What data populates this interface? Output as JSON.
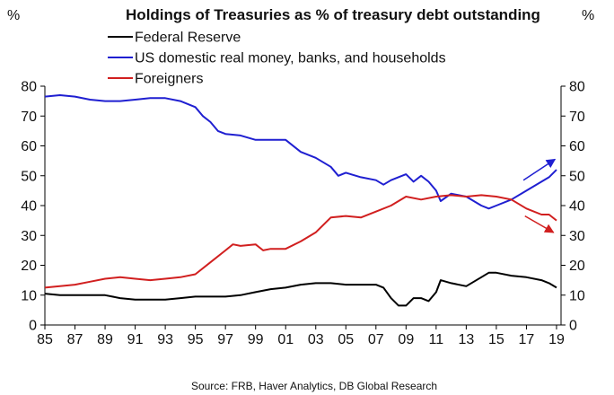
{
  "chart_data": {
    "type": "line",
    "title": "Holdings of Treasuries as % of treasury debt outstanding",
    "left_unit": "%",
    "right_unit": "%",
    "ylim": [
      0,
      80
    ],
    "y_ticks": [
      0,
      10,
      20,
      30,
      40,
      50,
      60,
      70,
      80
    ],
    "xlim": [
      1985,
      2019.3
    ],
    "x_ticks": [
      {
        "value": 1985,
        "label": "85"
      },
      {
        "value": 1987,
        "label": "87"
      },
      {
        "value": 1989,
        "label": "89"
      },
      {
        "value": 1991,
        "label": "91"
      },
      {
        "value": 1993,
        "label": "93"
      },
      {
        "value": 1995,
        "label": "95"
      },
      {
        "value": 1997,
        "label": "97"
      },
      {
        "value": 1999,
        "label": "99"
      },
      {
        "value": 2001,
        "label": "01"
      },
      {
        "value": 2003,
        "label": "03"
      },
      {
        "value": 2005,
        "label": "05"
      },
      {
        "value": 2007,
        "label": "07"
      },
      {
        "value": 2009,
        "label": "09"
      },
      {
        "value": 2011,
        "label": "11"
      },
      {
        "value": 2013,
        "label": "13"
      },
      {
        "value": 2015,
        "label": "15"
      },
      {
        "value": 2017,
        "label": "17"
      },
      {
        "value": 2019,
        "label": "19"
      }
    ],
    "legend_position": "top-left",
    "grid": false,
    "series": [
      {
        "name": "Federal Reserve",
        "color": "#000000",
        "points": [
          [
            1985.0,
            10.5
          ],
          [
            1986.0,
            10.0
          ],
          [
            1987.0,
            10.0
          ],
          [
            1988.0,
            10.0
          ],
          [
            1989.0,
            10.0
          ],
          [
            1990.0,
            9.0
          ],
          [
            1991.0,
            8.5
          ],
          [
            1992.0,
            8.5
          ],
          [
            1993.0,
            8.5
          ],
          [
            1994.0,
            9.0
          ],
          [
            1995.0,
            9.5
          ],
          [
            1996.0,
            9.5
          ],
          [
            1997.0,
            9.5
          ],
          [
            1998.0,
            10.0
          ],
          [
            1999.0,
            11.0
          ],
          [
            2000.0,
            12.0
          ],
          [
            2001.0,
            12.5
          ],
          [
            2002.0,
            13.5
          ],
          [
            2003.0,
            14.0
          ],
          [
            2004.0,
            14.0
          ],
          [
            2005.0,
            13.5
          ],
          [
            2006.0,
            13.5
          ],
          [
            2007.0,
            13.5
          ],
          [
            2007.5,
            12.5
          ],
          [
            2008.0,
            9.0
          ],
          [
            2008.5,
            6.5
          ],
          [
            2009.0,
            6.5
          ],
          [
            2009.5,
            9.0
          ],
          [
            2010.0,
            9.0
          ],
          [
            2010.5,
            8.0
          ],
          [
            2011.0,
            11.0
          ],
          [
            2011.3,
            15.0
          ],
          [
            2012.0,
            14.0
          ],
          [
            2013.0,
            13.0
          ],
          [
            2014.0,
            16.0
          ],
          [
            2014.5,
            17.5
          ],
          [
            2015.0,
            17.5
          ],
          [
            2016.0,
            16.5
          ],
          [
            2017.0,
            16.0
          ],
          [
            2018.0,
            15.0
          ],
          [
            2018.5,
            14.0
          ],
          [
            2019.0,
            12.5
          ]
        ]
      },
      {
        "name": "US domestic real money, banks, and households",
        "color": "#1f1fd1",
        "points": [
          [
            1985.0,
            76.5
          ],
          [
            1986.0,
            77.0
          ],
          [
            1987.0,
            76.5
          ],
          [
            1988.0,
            75.5
          ],
          [
            1989.0,
            75.0
          ],
          [
            1990.0,
            75.0
          ],
          [
            1991.0,
            75.5
          ],
          [
            1992.0,
            76.0
          ],
          [
            1993.0,
            76.0
          ],
          [
            1994.0,
            75.0
          ],
          [
            1995.0,
            73.0
          ],
          [
            1995.5,
            70.0
          ],
          [
            1996.0,
            68.0
          ],
          [
            1996.5,
            65.0
          ],
          [
            1997.0,
            64.0
          ],
          [
            1998.0,
            63.5
          ],
          [
            1999.0,
            62.0
          ],
          [
            2000.0,
            62.0
          ],
          [
            2001.0,
            62.0
          ],
          [
            2002.0,
            58.0
          ],
          [
            2003.0,
            56.0
          ],
          [
            2004.0,
            53.0
          ],
          [
            2004.5,
            50.0
          ],
          [
            2005.0,
            51.0
          ],
          [
            2006.0,
            49.5
          ],
          [
            2007.0,
            48.5
          ],
          [
            2007.5,
            47.0
          ],
          [
            2008.0,
            48.5
          ],
          [
            2009.0,
            50.5
          ],
          [
            2009.5,
            48.0
          ],
          [
            2010.0,
            50.0
          ],
          [
            2010.5,
            48.0
          ],
          [
            2011.0,
            45.0
          ],
          [
            2011.3,
            41.5
          ],
          [
            2012.0,
            44.0
          ],
          [
            2013.0,
            43.0
          ],
          [
            2014.0,
            40.0
          ],
          [
            2014.5,
            39.0
          ],
          [
            2015.0,
            40.0
          ],
          [
            2016.0,
            42.0
          ],
          [
            2017.0,
            45.0
          ],
          [
            2018.0,
            48.0
          ],
          [
            2018.5,
            49.5
          ],
          [
            2019.0,
            52.0
          ]
        ]
      },
      {
        "name": "Foreigners",
        "color": "#d11f1f",
        "points": [
          [
            1985.0,
            12.5
          ],
          [
            1986.0,
            13.0
          ],
          [
            1987.0,
            13.5
          ],
          [
            1988.0,
            14.5
          ],
          [
            1989.0,
            15.5
          ],
          [
            1990.0,
            16.0
          ],
          [
            1991.0,
            15.5
          ],
          [
            1992.0,
            15.0
          ],
          [
            1993.0,
            15.5
          ],
          [
            1994.0,
            16.0
          ],
          [
            1995.0,
            17.0
          ],
          [
            1996.0,
            21.0
          ],
          [
            1997.0,
            25.0
          ],
          [
            1997.5,
            27.0
          ],
          [
            1998.0,
            26.5
          ],
          [
            1999.0,
            27.0
          ],
          [
            1999.5,
            25.0
          ],
          [
            2000.0,
            25.5
          ],
          [
            2001.0,
            25.5
          ],
          [
            2002.0,
            28.0
          ],
          [
            2003.0,
            31.0
          ],
          [
            2004.0,
            36.0
          ],
          [
            2005.0,
            36.5
          ],
          [
            2006.0,
            36.0
          ],
          [
            2007.0,
            38.0
          ],
          [
            2008.0,
            40.0
          ],
          [
            2009.0,
            43.0
          ],
          [
            2010.0,
            42.0
          ],
          [
            2011.0,
            43.0
          ],
          [
            2012.0,
            43.5
          ],
          [
            2013.0,
            43.0
          ],
          [
            2014.0,
            43.5
          ],
          [
            2015.0,
            43.0
          ],
          [
            2016.0,
            42.0
          ],
          [
            2017.0,
            39.0
          ],
          [
            2018.0,
            37.0
          ],
          [
            2018.5,
            37.0
          ],
          [
            2019.0,
            35.0
          ]
        ]
      }
    ],
    "annotations": [
      {
        "type": "arrow",
        "color": "#1f1fd1",
        "from": [
          2016.8,
          48.5
        ],
        "to": [
          2018.9,
          55.5
        ]
      },
      {
        "type": "arrow",
        "color": "#d11f1f",
        "from": [
          2016.9,
          36.5
        ],
        "to": [
          2018.8,
          31.0
        ]
      }
    ],
    "source": "Source: FRB, Haver Analytics,  DB Global  Research"
  }
}
